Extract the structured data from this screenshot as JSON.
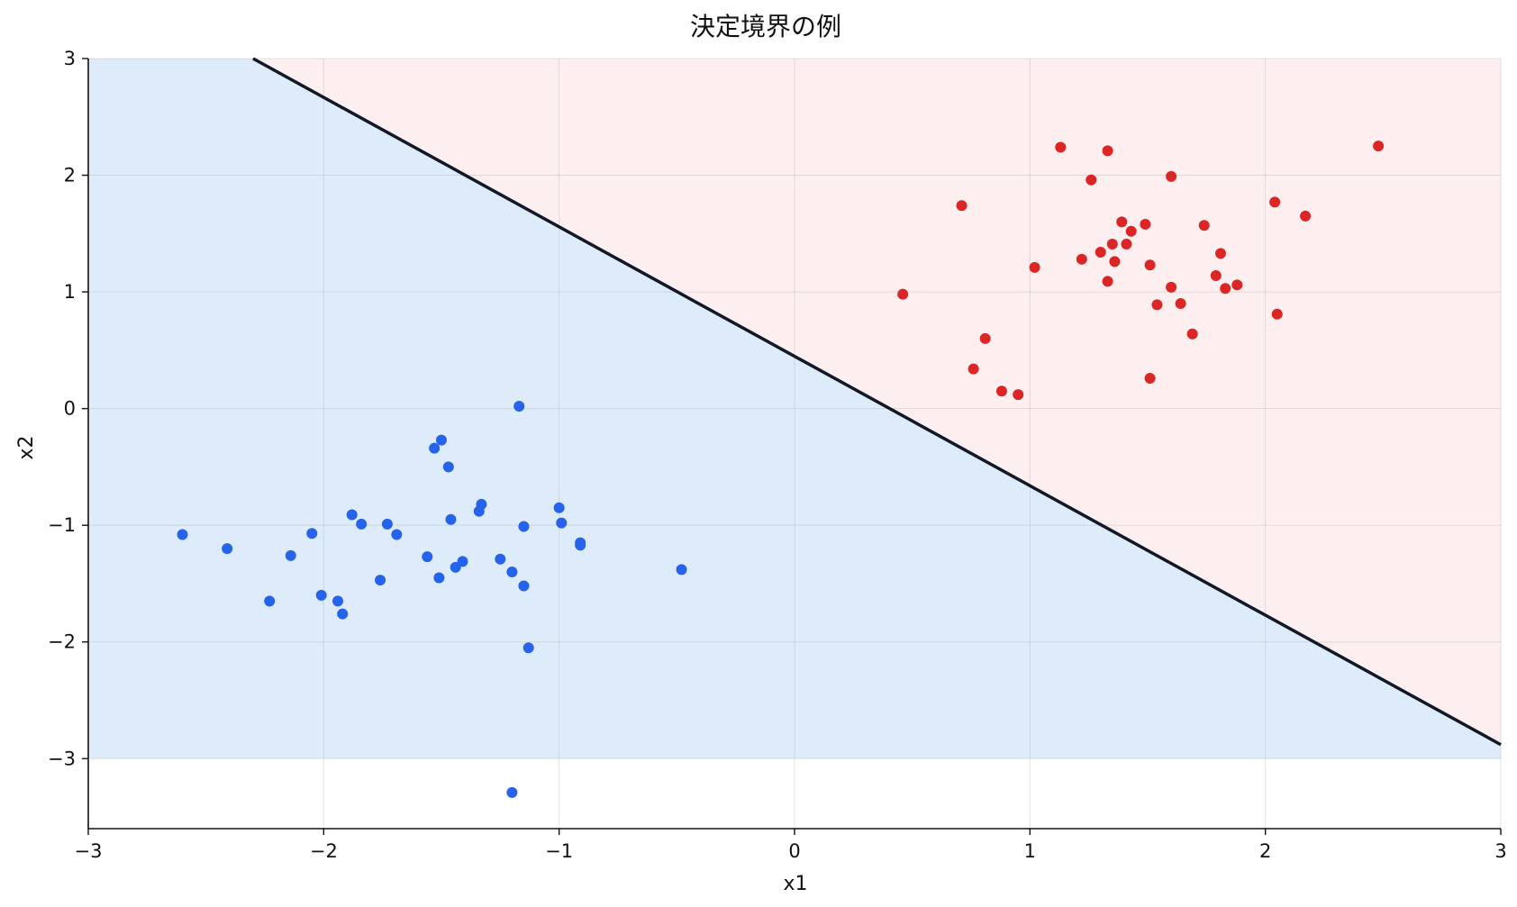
{
  "chart_data": {
    "type": "scatter",
    "title": "決定境界の例",
    "xlabel": "x1",
    "ylabel": "x2",
    "xlim": [
      -3,
      3
    ],
    "ylim": [
      -3.6,
      3
    ],
    "xticks": [
      -3,
      -2,
      -1,
      0,
      1,
      2,
      3
    ],
    "yticks": [
      -3,
      -2,
      -1,
      0,
      1,
      2,
      3
    ],
    "xtick_labels": [
      "−3",
      "−2",
      "−1",
      "0",
      "1",
      "2",
      "3"
    ],
    "ytick_labels": [
      "−3",
      "−2",
      "−1",
      "0",
      "1",
      "2",
      "3"
    ],
    "grid": true,
    "region_ylim": [
      -3,
      3
    ],
    "region_colors": {
      "class0": "#deebfb",
      "class1": "#fdeeef"
    },
    "boundary": {
      "x": [
        -2.3,
        3
      ],
      "y": [
        3,
        -2.88
      ],
      "color": "#111827"
    },
    "series": [
      {
        "color": "#dc2626",
        "points": [
          [
            2.48,
            2.25
          ],
          [
            1.13,
            2.24
          ],
          [
            1.33,
            2.21
          ],
          [
            1.6,
            1.99
          ],
          [
            1.26,
            1.96
          ],
          [
            0.71,
            1.74
          ],
          [
            2.04,
            1.77
          ],
          [
            2.17,
            1.65
          ],
          [
            1.39,
            1.6
          ],
          [
            1.49,
            1.58
          ],
          [
            1.74,
            1.57
          ],
          [
            1.43,
            1.52
          ],
          [
            1.35,
            1.41
          ],
          [
            1.41,
            1.41
          ],
          [
            1.3,
            1.34
          ],
          [
            1.81,
            1.33
          ],
          [
            1.22,
            1.28
          ],
          [
            1.36,
            1.26
          ],
          [
            1.51,
            1.23
          ],
          [
            1.02,
            1.21
          ],
          [
            1.79,
            1.14
          ],
          [
            1.33,
            1.09
          ],
          [
            1.88,
            1.06
          ],
          [
            1.6,
            1.04
          ],
          [
            1.83,
            1.03
          ],
          [
            0.46,
            0.98
          ],
          [
            1.54,
            0.89
          ],
          [
            1.64,
            0.9
          ],
          [
            2.05,
            0.81
          ],
          [
            1.69,
            0.64
          ],
          [
            0.81,
            0.6
          ],
          [
            0.76,
            0.34
          ],
          [
            1.51,
            0.26
          ],
          [
            0.88,
            0.15
          ],
          [
            0.95,
            0.12
          ]
        ]
      },
      {
        "color": "#2563eb",
        "points": [
          [
            -1.17,
            0.02
          ],
          [
            -1.5,
            -0.27
          ],
          [
            -1.53,
            -0.34
          ],
          [
            -1.47,
            -0.5
          ],
          [
            -1.33,
            -0.82
          ],
          [
            -1.34,
            -0.88
          ],
          [
            -1.0,
            -0.85
          ],
          [
            -1.88,
            -0.91
          ],
          [
            -1.46,
            -0.95
          ],
          [
            -0.99,
            -0.98
          ],
          [
            -1.84,
            -0.99
          ],
          [
            -1.73,
            -0.99
          ],
          [
            -1.15,
            -1.01
          ],
          [
            -2.05,
            -1.07
          ],
          [
            -2.6,
            -1.08
          ],
          [
            -1.69,
            -1.08
          ],
          [
            -0.91,
            -1.15
          ],
          [
            -0.91,
            -1.17
          ],
          [
            -2.41,
            -1.2
          ],
          [
            -2.14,
            -1.26
          ],
          [
            -1.56,
            -1.27
          ],
          [
            -1.25,
            -1.29
          ],
          [
            -1.41,
            -1.31
          ],
          [
            -1.44,
            -1.36
          ],
          [
            -0.48,
            -1.38
          ],
          [
            -1.2,
            -1.4
          ],
          [
            -1.76,
            -1.47
          ],
          [
            -1.51,
            -1.45
          ],
          [
            -1.15,
            -1.52
          ],
          [
            -2.01,
            -1.6
          ],
          [
            -2.23,
            -1.65
          ],
          [
            -1.94,
            -1.65
          ],
          [
            -1.92,
            -1.76
          ],
          [
            -1.13,
            -2.05
          ],
          [
            -1.2,
            -3.29
          ]
        ]
      }
    ]
  }
}
